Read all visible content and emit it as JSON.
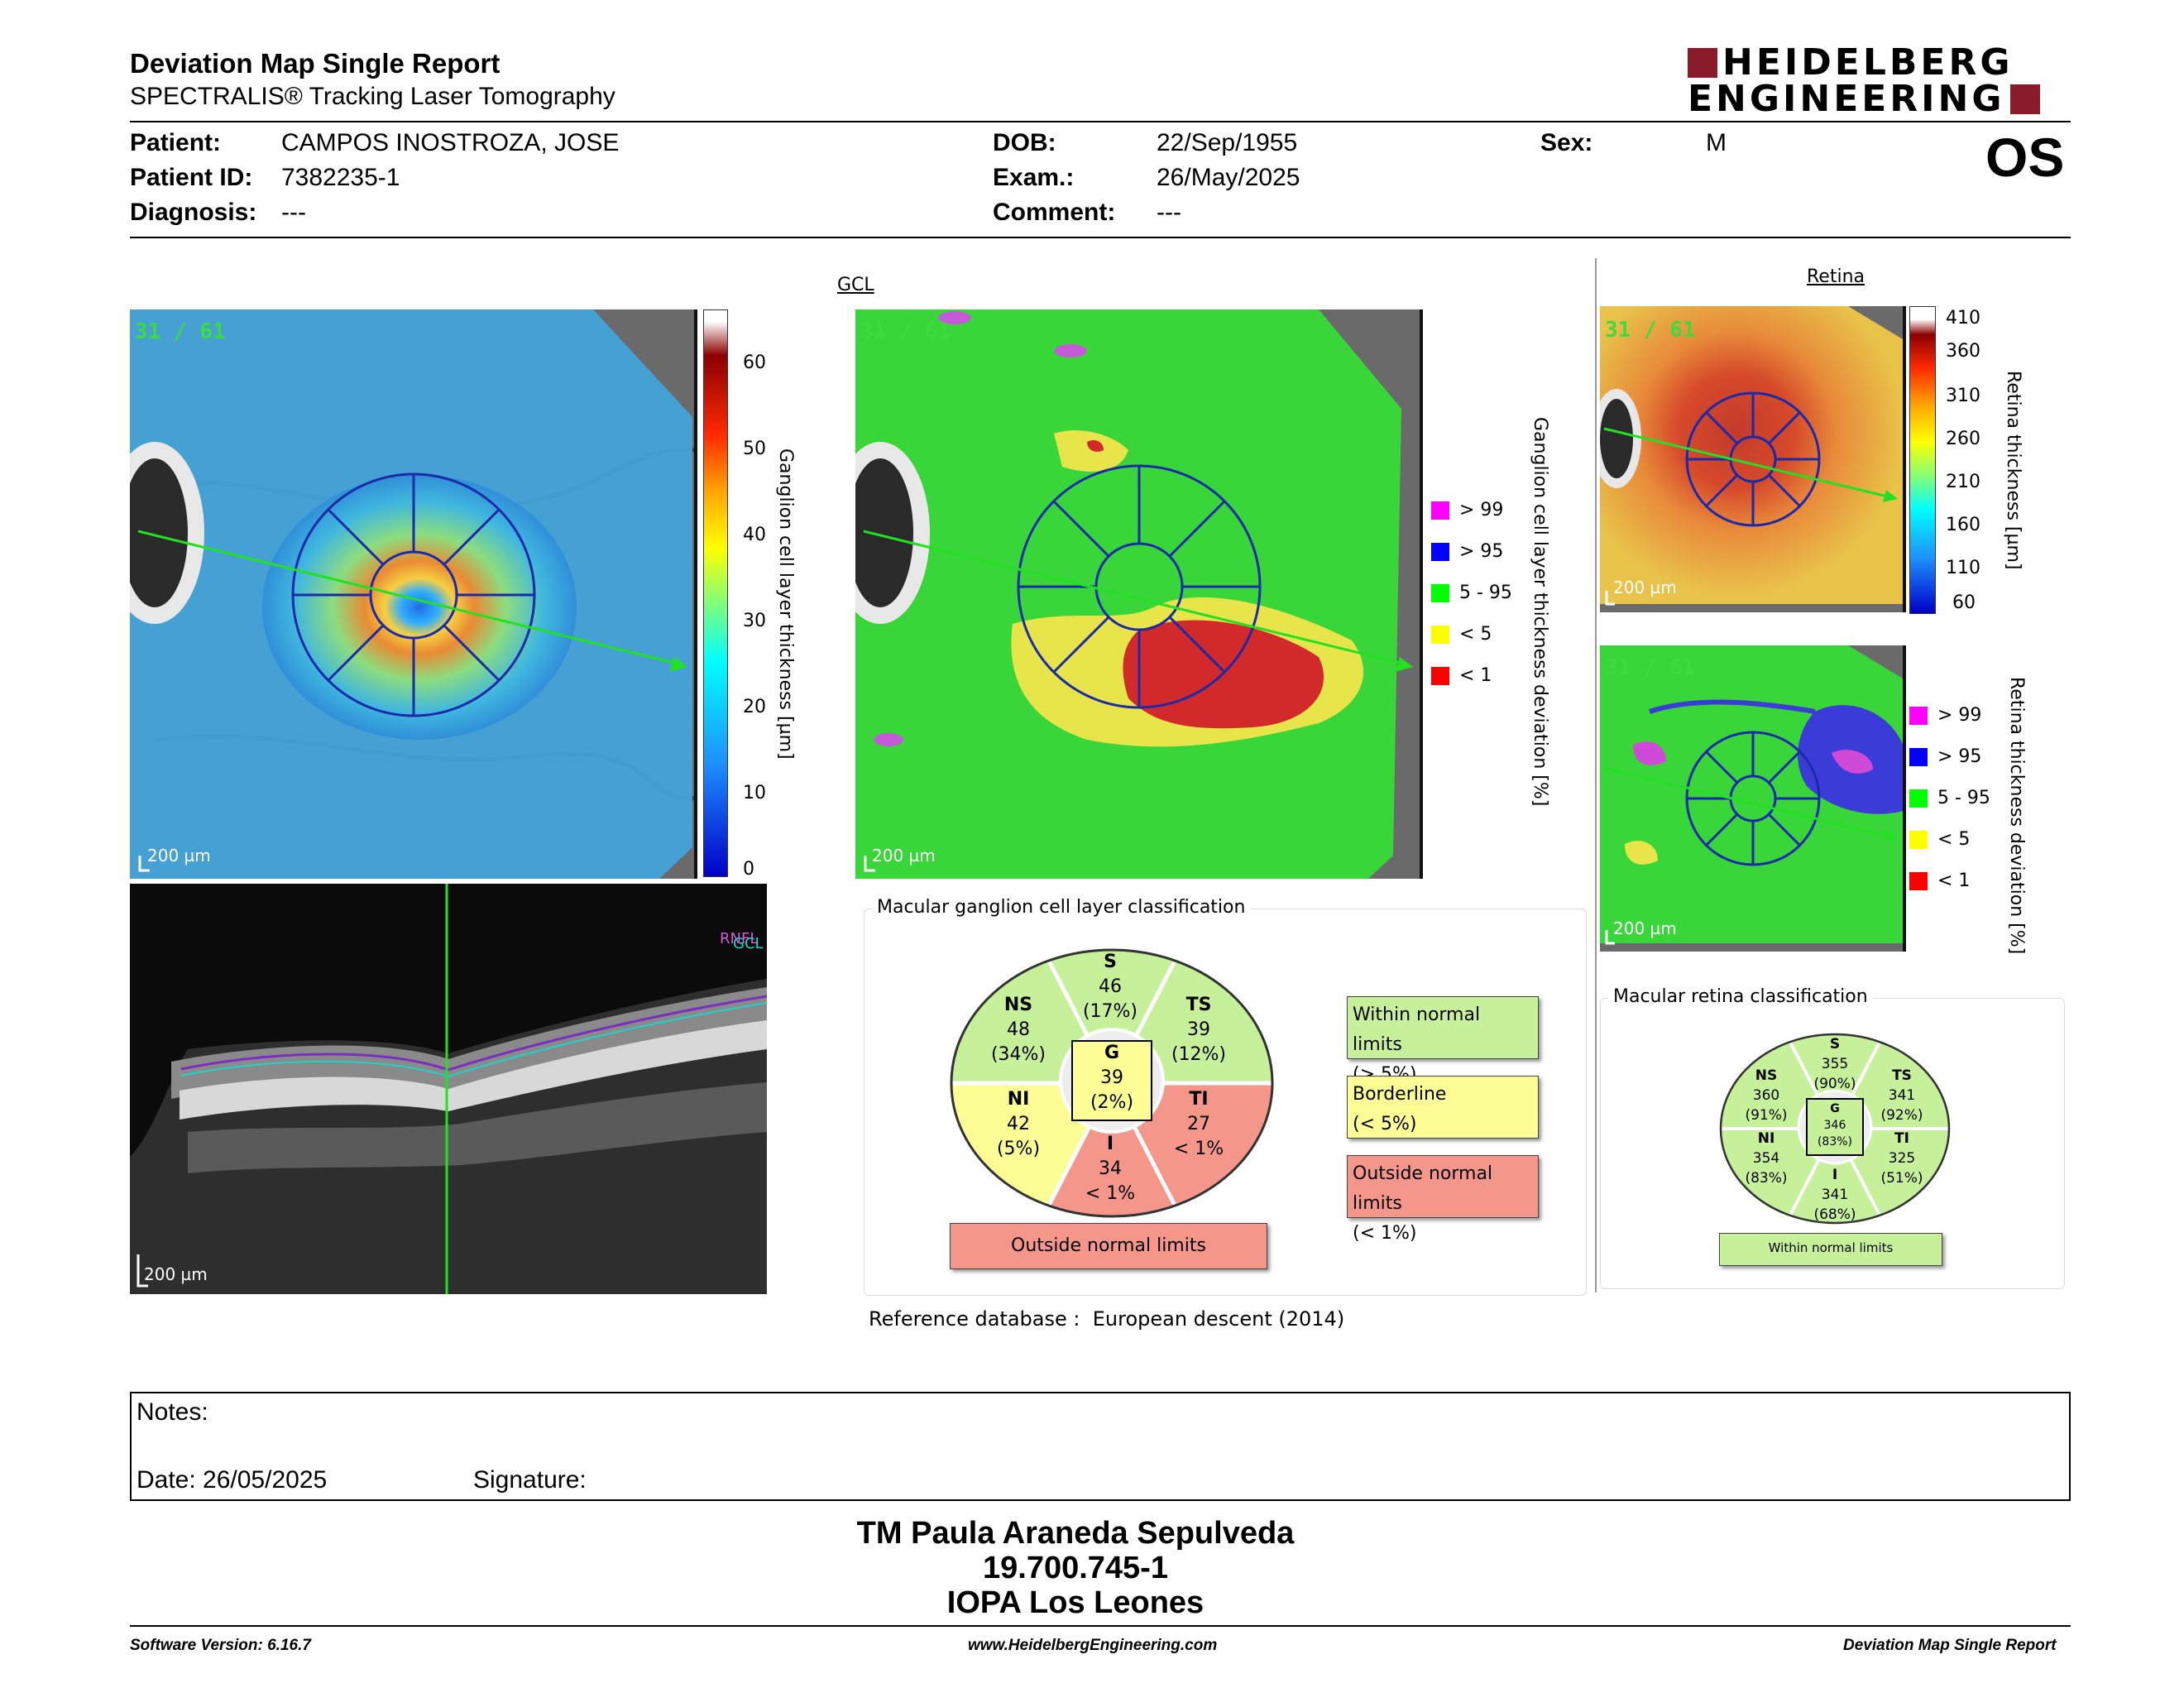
{
  "header": {
    "title": "Deviation Map Single Report",
    "subtitle": "SPECTRALIS® Tracking Laser Tomography",
    "logo_line1": "HEIDELBERG",
    "logo_line2": "ENGINEERING",
    "eye": "OS"
  },
  "patient": {
    "patient_label": "Patient:",
    "patient_value": "CAMPOS INOSTROZA, JOSE",
    "id_label": "Patient ID:",
    "id_value": "7382235-1",
    "diagnosis_label": "Diagnosis:",
    "diagnosis_value": "---",
    "dob_label": "DOB:",
    "dob_value": "22/Sep/1955",
    "exam_label": "Exam.:",
    "exam_value": "26/May/2025",
    "comment_label": "Comment:",
    "comment_value": "---",
    "sex_label": "Sex:",
    "sex_value": "M"
  },
  "gcl_thickness_map": {
    "counter": "31 / 61",
    "scale": "200 µm",
    "colorbar_ticks": [
      "60",
      "50",
      "40",
      "30",
      "20",
      "10",
      "0"
    ],
    "axis_label": "Ganglion cell layer thickness [µm]"
  },
  "bscan": {
    "scale": "200 µm",
    "layer_labels": [
      "RNFL",
      "GCL"
    ]
  },
  "gcl_deviation_map": {
    "heading": "GCL",
    "counter": "31 / 61",
    "scale": "200 µm",
    "axis_label": "Ganglion cell layer thickness deviation [%]",
    "key": [
      {
        "label": "> 99",
        "color": "#ff00ff"
      },
      {
        "label": "> 95",
        "color": "#0000ff"
      },
      {
        "label": "5 - 95",
        "color": "#00ff00"
      },
      {
        "label": "< 5",
        "color": "#ffff00"
      },
      {
        "label": "< 1",
        "color": "#ff0000"
      }
    ]
  },
  "gcl_classification": {
    "title": "Macular ganglion cell layer classification",
    "sectors": {
      "S": {
        "label": "S",
        "value": "46",
        "pct": "(17%)"
      },
      "NS": {
        "label": "NS",
        "value": "48",
        "pct": "(34%)"
      },
      "TS": {
        "label": "TS",
        "value": "39",
        "pct": "(12%)"
      },
      "G": {
        "label": "G",
        "value": "39",
        "pct": "(2%)"
      },
      "NI": {
        "label": "NI",
        "value": "42",
        "pct": "(5%)"
      },
      "TI": {
        "label": "TI",
        "value": "27",
        "pct": "< 1%"
      },
      "I": {
        "label": "I",
        "value": "34",
        "pct": "< 1%"
      }
    },
    "result": "Outside normal limits",
    "legend": {
      "wnl_line1": "Within normal limits",
      "wnl_line2": "(> 5%)",
      "bl_line1": "Borderline",
      "bl_line2": "(< 5%)",
      "onl_line1": "Outside normal limits",
      "onl_line2": "(< 1%)"
    },
    "colors": {
      "normal": "#c6f19a",
      "borderline": "#fdfd96",
      "outside": "#f5968a"
    }
  },
  "reference": "Reference database :  European descent (2014)",
  "retina_map": {
    "heading": "Retina",
    "counter": "31 / 61",
    "scale": "200 µm",
    "colorbar_ticks": [
      "410",
      "360",
      "310",
      "260",
      "210",
      "160",
      "110",
      "60"
    ],
    "axis_label": "Retina thickness [µm]"
  },
  "retina_deviation_map": {
    "counter": "31 / 61",
    "scale": "200 µm",
    "axis_label": "Retina thickness deviation [%]",
    "key": [
      {
        "label": "> 99",
        "color": "#ff00ff"
      },
      {
        "label": "> 95",
        "color": "#0000ff"
      },
      {
        "label": "5 - 95",
        "color": "#00ff00"
      },
      {
        "label": "< 5",
        "color": "#ffff00"
      },
      {
        "label": "< 1",
        "color": "#ff0000"
      }
    ]
  },
  "retina_classification": {
    "title": "Macular retina classification",
    "sectors": {
      "S": {
        "label": "S",
        "value": "355",
        "pct": "(90%)"
      },
      "NS": {
        "label": "NS",
        "value": "360",
        "pct": "(91%)"
      },
      "TS": {
        "label": "TS",
        "value": "341",
        "pct": "(92%)"
      },
      "G": {
        "label": "G",
        "value": "346",
        "pct": "(83%)"
      },
      "NI": {
        "label": "NI",
        "value": "354",
        "pct": "(83%)"
      },
      "TI": {
        "label": "TI",
        "value": "325",
        "pct": "(51%)"
      },
      "I": {
        "label": "I",
        "value": "341",
        "pct": "(68%)"
      }
    },
    "result": "Within normal limits"
  },
  "notes": {
    "label": "Notes:",
    "date": "Date: 26/05/2025",
    "signature": "Signature:"
  },
  "signatory": {
    "name": "TM Paula Araneda Sepulveda",
    "id": "19.700.745-1",
    "org": "IOPA Los Leones"
  },
  "footer": {
    "software": "Software Version: 6.16.7",
    "website": "www.HeidelbergEngineering.com",
    "report": "Deviation Map Single Report"
  }
}
